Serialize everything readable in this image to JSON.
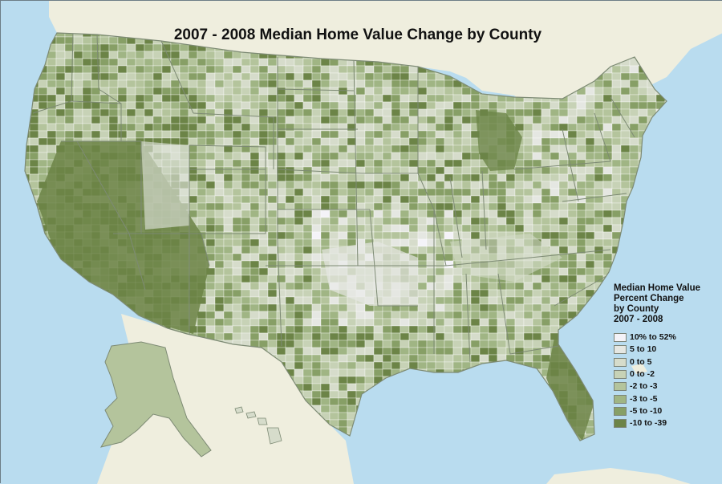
{
  "map": {
    "title": "2007 - 2008 Median Home Value Change by County",
    "colors": {
      "water": "#b9dcef",
      "land_outside_us": "#efeede",
      "county_border": "#ffffff",
      "state_border": "#7d8a74"
    }
  },
  "legend": {
    "title_lines": [
      "Median Home Value",
      "Percent Change",
      "by County",
      "2007 - 2008"
    ],
    "items": [
      {
        "label": "10% to 52%",
        "color": "#f4f3f8"
      },
      {
        "label": "5 to 10",
        "color": "#e5e7e2"
      },
      {
        "label": "0 to 5",
        "color": "#d6dccb"
      },
      {
        "label": "0 to -2",
        "color": "#c7d2b6"
      },
      {
        "label": "-2 to -3",
        "color": "#b4c49c"
      },
      {
        "label": "-3 to -5",
        "color": "#a0b584"
      },
      {
        "label": "-5 to -10",
        "color": "#879f66"
      },
      {
        "label": "-10 to -39",
        "color": "#6c8447"
      }
    ]
  }
}
